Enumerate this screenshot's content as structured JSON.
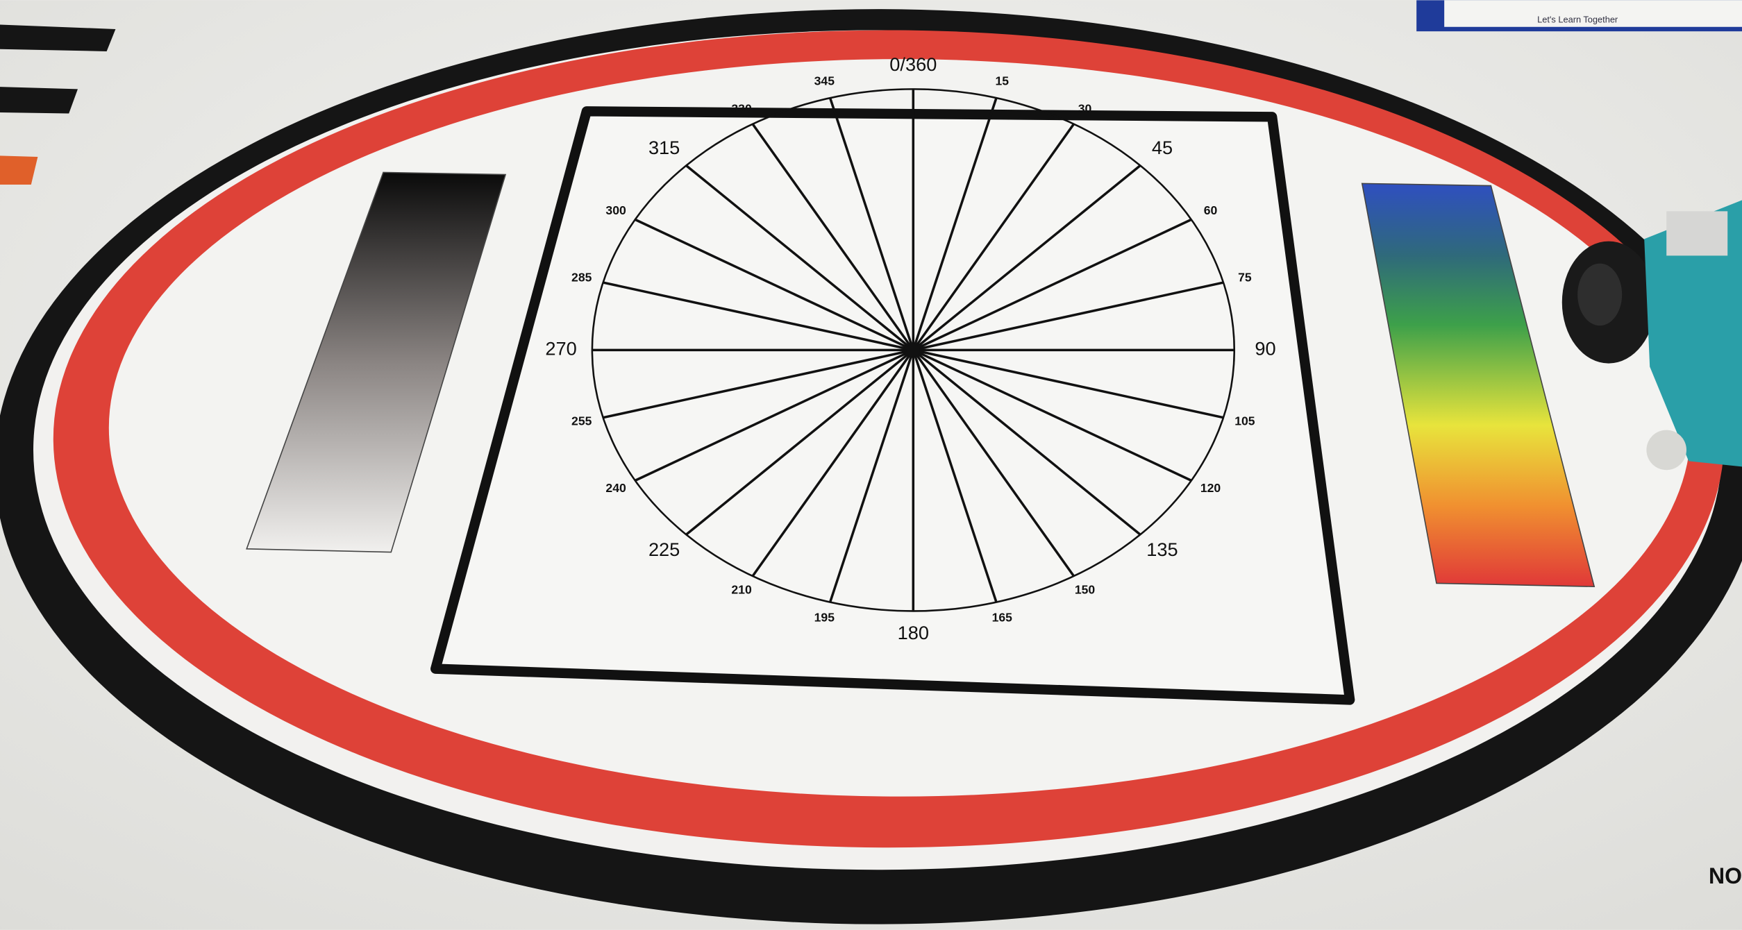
{
  "dial": {
    "angle_labels": [
      "0/360",
      "15",
      "30",
      "45",
      "60",
      "75",
      "90",
      "105",
      "120",
      "135",
      "150",
      "165",
      "180",
      "195",
      "210",
      "225",
      "240",
      "255",
      "270",
      "285",
      "300",
      "315",
      "330",
      "345"
    ]
  },
  "logo": {
    "tagline": "Let's Learn Together"
  },
  "corner_text": "NO"
}
